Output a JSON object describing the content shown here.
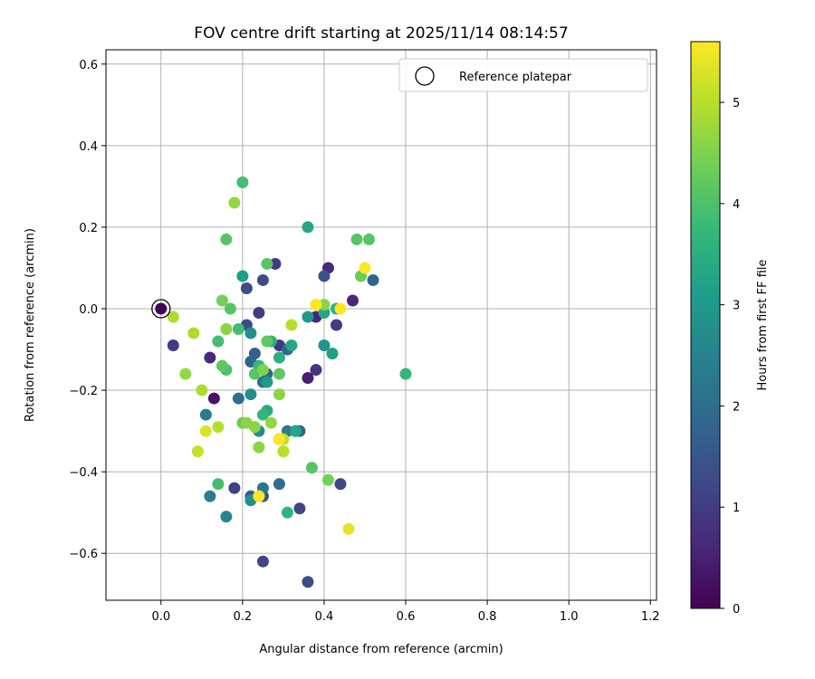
{
  "chart_data": {
    "type": "scatter",
    "title": "FOV centre drift starting at 2025/11/14 08:14:57",
    "xlabel": "Angular distance from reference (arcmin)",
    "ylabel": "Rotation from reference (arcmin)",
    "xlim": [
      -0.135,
      1.215
    ],
    "ylim": [
      -0.715,
      0.635
    ],
    "xticks": [
      0.0,
      0.2,
      0.4,
      0.6,
      0.8,
      1.0,
      1.2
    ],
    "xtick_labels": [
      "0.0",
      "0.2",
      "0.4",
      "0.6",
      "0.8",
      "1.0",
      "1.2"
    ],
    "yticks": [
      -0.6,
      -0.4,
      -0.2,
      0.0,
      0.2,
      0.4,
      0.6
    ],
    "ytick_labels": [
      "−0.6",
      "−0.4",
      "−0.2",
      "0.0",
      "0.2",
      "0.4",
      "0.6"
    ],
    "grid": true,
    "legend": {
      "label": "Reference platepar",
      "placement": "top-right"
    },
    "reference_point": {
      "x": 0.0,
      "y": 0.0,
      "hours": 0.0
    },
    "colorbar": {
      "label": "Hours from first FF file",
      "range": [
        0,
        5.6
      ],
      "ticks": [
        0,
        1,
        2,
        3,
        4,
        5
      ],
      "tick_labels": [
        "0",
        "1",
        "2",
        "3",
        "4",
        "5"
      ],
      "colormap": "viridis",
      "colors": [
        "#440154",
        "#482878",
        "#3e4989",
        "#31688e",
        "#26828e",
        "#1f9e89",
        "#35b779",
        "#6ece58",
        "#b5de2b",
        "#fde725"
      ]
    },
    "series": [
      {
        "name": "FOV centre drift",
        "x": [
          0.0,
          0.03,
          0.12,
          0.13,
          0.18,
          0.21,
          0.25,
          0.29,
          0.33,
          0.36,
          0.41,
          0.43,
          0.47,
          0.28,
          0.24,
          0.38,
          0.38,
          0.29,
          0.25,
          0.34,
          0.25,
          0.44,
          0.34,
          0.36,
          0.22,
          0.26,
          0.25,
          0.21,
          0.23,
          0.4,
          0.22,
          0.31,
          0.25,
          0.33,
          0.11,
          0.19,
          0.52,
          0.29,
          0.12,
          0.31,
          0.16,
          0.22,
          0.24,
          0.4,
          0.22,
          0.36,
          0.26,
          0.42,
          0.22,
          0.2,
          0.36,
          0.26,
          0.33,
          0.4,
          0.32,
          0.29,
          0.31,
          0.27,
          0.43,
          0.6,
          0.25,
          0.24,
          0.19,
          0.14,
          0.14,
          0.16,
          0.2,
          0.17,
          0.26,
          0.48,
          0.37,
          0.23,
          0.51,
          0.16,
          0.29,
          0.15,
          0.26,
          0.49,
          0.2,
          0.41,
          0.15,
          0.24,
          0.23,
          0.06,
          0.03,
          0.08,
          0.1,
          0.16,
          0.18,
          0.21,
          0.27,
          0.25,
          0.29,
          0.32,
          0.38,
          0.3,
          0.3,
          0.14,
          0.09,
          0.24,
          0.46,
          0.11,
          0.4,
          0.38,
          0.5,
          0.44,
          0.29,
          0.24
        ],
        "hours": [
          0.0,
          1.0,
          0.7,
          0.3,
          1.1,
          1.3,
          1.3,
          0.3,
          0.3,
          0.5,
          0.7,
          1.0,
          0.6,
          0.9,
          1.0,
          0.9,
          0.6,
          0.9,
          1.2,
          1.2,
          1.4,
          1.2,
          1.8,
          1.3,
          1.6,
          1.8,
          2.2,
          1.3,
          1.7,
          1.4,
          1.8,
          1.9,
          2.0,
          2.1,
          2.3,
          2.0,
          1.8,
          2.0,
          2.4,
          2.3,
          2.6,
          2.8,
          2.7,
          2.9,
          2.7,
          3.0,
          3.0,
          3.1,
          2.8,
          3.1,
          3.3,
          3.4,
          3.3,
          3.3,
          3.3,
          3.5,
          3.6,
          3.5,
          3.5,
          3.7,
          3.7,
          3.7,
          3.9,
          3.9,
          3.9,
          4.0,
          3.9,
          4.1,
          4.1,
          4.1,
          4.1,
          4.1,
          4.1,
          4.1,
          4.2,
          4.2,
          4.2,
          4.3,
          4.3,
          4.4,
          4.4,
          4.6,
          4.6,
          4.7,
          4.9,
          4.9,
          4.9,
          4.6,
          4.7,
          4.6,
          4.7,
          4.5,
          4.6,
          5.0,
          5.0,
          5.0,
          5.0,
          5.0,
          5.1,
          5.3,
          5.4,
          5.3,
          4.6,
          5.6,
          5.6,
          5.6,
          5.6,
          5.6
        ],
        "y": [
          0.0,
          -0.09,
          -0.12,
          -0.22,
          -0.44,
          -0.04,
          0.07,
          -0.32,
          -0.3,
          -0.17,
          0.1,
          -0.04,
          0.02,
          0.11,
          -0.01,
          -0.15,
          -0.02,
          -0.09,
          -0.62,
          -0.49,
          -0.46,
          -0.43,
          -0.3,
          -0.67,
          -0.46,
          -0.16,
          -0.44,
          0.05,
          -0.11,
          0.08,
          -0.13,
          -0.1,
          -0.18,
          -0.3,
          -0.26,
          -0.22,
          0.07,
          -0.43,
          -0.46,
          -0.3,
          -0.51,
          -0.06,
          -0.3,
          -0.09,
          -0.21,
          -0.02,
          -0.18,
          -0.11,
          -0.47,
          0.08,
          0.2,
          -0.25,
          -0.3,
          -0.01,
          -0.09,
          -0.12,
          -0.5,
          -0.08,
          0.0,
          -0.16,
          -0.26,
          -0.14,
          -0.05,
          -0.08,
          -0.43,
          -0.15,
          0.31,
          -0.0,
          0.11,
          0.17,
          -0.39,
          -0.16,
          0.17,
          0.17,
          -0.16,
          -0.14,
          -0.08,
          0.08,
          -0.28,
          -0.42,
          0.02,
          -0.34,
          -0.29,
          -0.16,
          -0.02,
          -0.06,
          -0.2,
          -0.05,
          0.26,
          -0.28,
          -0.28,
          -0.15,
          -0.21,
          -0.04,
          0.01,
          -0.32,
          -0.35,
          -0.29,
          -0.35,
          -0.46,
          -0.54,
          -0.3,
          0.01,
          0.01,
          0.1,
          0.0,
          -0.32,
          -0.46
        ]
      }
    ]
  }
}
